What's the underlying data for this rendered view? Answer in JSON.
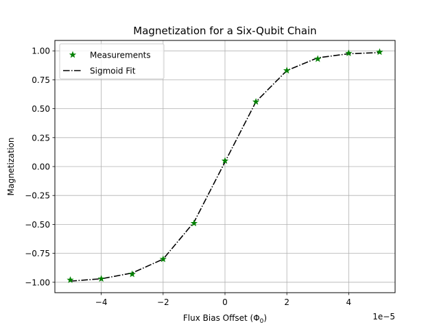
{
  "chart_data": {
    "type": "line",
    "title": "Magnetization for a Six-Qubit Chain",
    "xlabel": "Flux Bias Offset (Φ",
    "xlabel_subscript": "0",
    "xlabel_suffix": ")",
    "ylabel": "Magnetization",
    "x_offset_text": "1e−5",
    "xlim": [
      -5.5,
      5.5
    ],
    "ylim": [
      -1.09,
      1.09
    ],
    "x_scale_factor": "1e-5",
    "xticks": [
      -4,
      -2,
      0,
      2,
      4
    ],
    "xtick_labels": [
      "−4",
      "−2",
      "0",
      "2",
      "4"
    ],
    "yticks": [
      -1.0,
      -0.75,
      -0.5,
      -0.25,
      0.0,
      0.25,
      0.5,
      0.75,
      1.0
    ],
    "ytick_labels": [
      "−1.00",
      "−0.75",
      "−0.50",
      "−0.25",
      "0.00",
      "0.25",
      "0.50",
      "0.75",
      "1.00"
    ],
    "grid": true,
    "legend_position": "upper-left",
    "series": [
      {
        "name": "Measurements",
        "kind": "scatter",
        "marker": "star",
        "color": "#008000",
        "x": [
          -5,
          -4,
          -3,
          -2,
          -1,
          0,
          1,
          2,
          3,
          4,
          5
        ],
        "y": [
          -0.98,
          -0.97,
          -0.93,
          -0.8,
          -0.49,
          0.05,
          0.56,
          0.83,
          0.93,
          0.98,
          0.99
        ]
      },
      {
        "name": "Sigmoid Fit",
        "kind": "line",
        "linestyle": "dashdot",
        "color": "#000000",
        "x": [
          -5,
          -4,
          -3,
          -2,
          -1,
          0,
          1,
          2,
          3,
          4,
          5
        ],
        "y": [
          -0.99,
          -0.97,
          -0.92,
          -0.8,
          -0.48,
          0.04,
          0.56,
          0.83,
          0.94,
          0.975,
          0.985
        ]
      }
    ]
  }
}
